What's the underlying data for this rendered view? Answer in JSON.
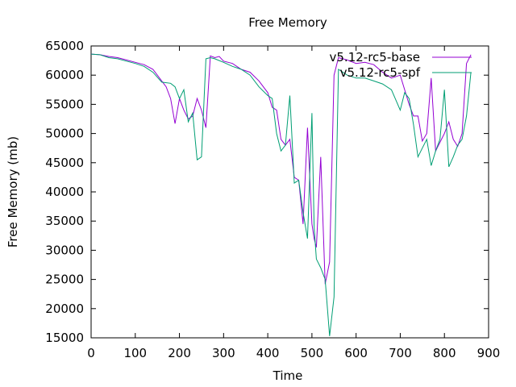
{
  "chart_data": {
    "type": "line",
    "title": "Free Memory",
    "xlabel": "Time",
    "ylabel": "Free Memory (mb)",
    "xlim": [
      0,
      900
    ],
    "ylim": [
      15000,
      65000
    ],
    "xticks": [
      "0",
      "100",
      "200",
      "300",
      "400",
      "500",
      "600",
      "700",
      "800",
      "900"
    ],
    "yticks": [
      "15000",
      "20000",
      "25000",
      "30000",
      "35000",
      "40000",
      "45000",
      "50000",
      "55000",
      "60000",
      "65000"
    ],
    "grid": false,
    "legend": "top-right",
    "series": [
      {
        "name": "v5.12-rc5-base",
        "color": "#9400d3",
        "x": [
          0,
          20,
          40,
          60,
          80,
          100,
          120,
          140,
          160,
          170,
          180,
          190,
          200,
          210,
          220,
          230,
          240,
          250,
          260,
          270,
          280,
          290,
          300,
          320,
          340,
          360,
          380,
          400,
          410,
          420,
          430,
          440,
          450,
          460,
          470,
          480,
          490,
          500,
          505,
          510,
          520,
          530,
          540,
          550,
          560,
          580,
          600,
          620,
          640,
          660,
          680,
          700,
          720,
          730,
          740,
          750,
          760,
          770,
          780,
          790,
          800,
          810,
          820,
          830,
          840,
          850,
          860
        ],
        "y": [
          63600,
          63500,
          63200,
          63000,
          62600,
          62200,
          61800,
          61000,
          59000,
          58000,
          56000,
          51700,
          56000,
          54000,
          52500,
          53000,
          56000,
          54000,
          51000,
          63300,
          63000,
          63200,
          62400,
          62000,
          61000,
          60500,
          59000,
          57000,
          54500,
          54000,
          49000,
          48000,
          49000,
          42500,
          42000,
          34500,
          51000,
          34500,
          32000,
          30500,
          46000,
          24200,
          28000,
          60000,
          63000,
          62600,
          62000,
          62200,
          61800,
          60500,
          59500,
          60000,
          55000,
          53000,
          53000,
          48700,
          50000,
          59500,
          47000,
          48500,
          50000,
          52000,
          49000,
          47800,
          50000,
          62000,
          63500
        ]
      },
      {
        "name": "v5.12-rc5-spf",
        "color": "#009e73",
        "x": [
          0,
          20,
          40,
          60,
          80,
          100,
          120,
          140,
          160,
          180,
          190,
          200,
          210,
          220,
          230,
          240,
          250,
          260,
          270,
          280,
          290,
          300,
          320,
          340,
          360,
          380,
          400,
          410,
          420,
          430,
          440,
          450,
          460,
          470,
          480,
          490,
          500,
          505,
          510,
          520,
          530,
          540,
          550,
          560,
          580,
          600,
          620,
          640,
          660,
          680,
          700,
          710,
          720,
          730,
          740,
          750,
          760,
          770,
          780,
          790,
          800,
          810,
          820,
          830,
          840,
          850,
          860
        ],
        "y": [
          63600,
          63500,
          63000,
          62800,
          62400,
          62000,
          61500,
          60500,
          58800,
          58600,
          58000,
          56000,
          57500,
          52000,
          53500,
          45500,
          46000,
          62800,
          63000,
          62800,
          62500,
          62200,
          61500,
          61000,
          60000,
          58000,
          56500,
          56000,
          50000,
          47000,
          48000,
          56500,
          41500,
          42000,
          36500,
          32000,
          53500,
          34000,
          28500,
          27000,
          25000,
          15300,
          22000,
          61000,
          60000,
          59500,
          59500,
          59000,
          58500,
          57500,
          54000,
          57000,
          56000,
          51500,
          46000,
          47500,
          49000,
          44500,
          47000,
          49000,
          57500,
          44300,
          46000,
          48000,
          49000,
          53000,
          60500
        ]
      }
    ]
  }
}
